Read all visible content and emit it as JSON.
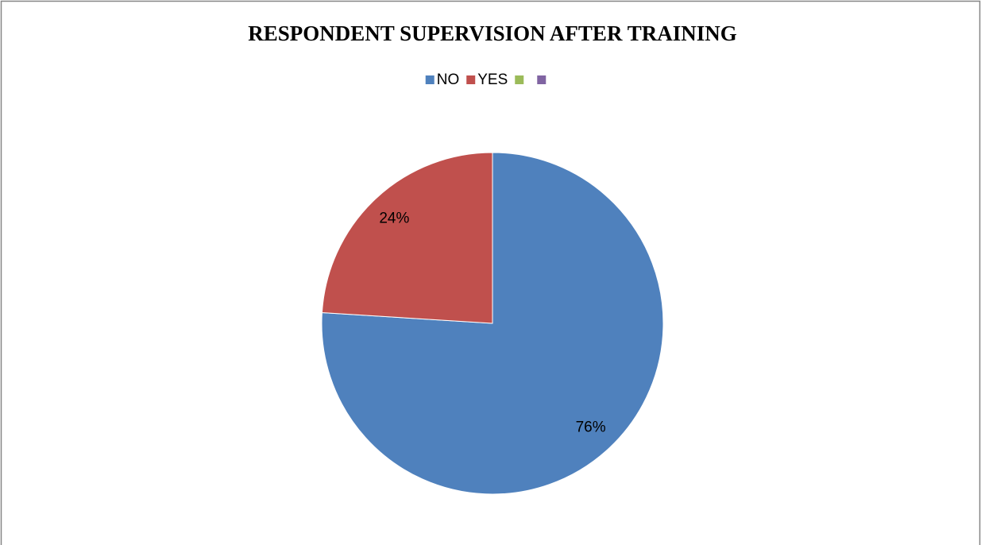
{
  "chart_data": {
    "type": "pie",
    "title": "RESPONDENT SUPERVISION AFTER TRAINING",
    "categories": [
      "NO",
      "YES",
      null,
      null
    ],
    "values": [
      76,
      24,
      0,
      0
    ],
    "value_labels": [
      "76%",
      "24%",
      null,
      null
    ],
    "colors": [
      "#4f81bd",
      "#c0504d",
      "#9bbb59",
      "#8064a2"
    ],
    "legend": "top"
  }
}
